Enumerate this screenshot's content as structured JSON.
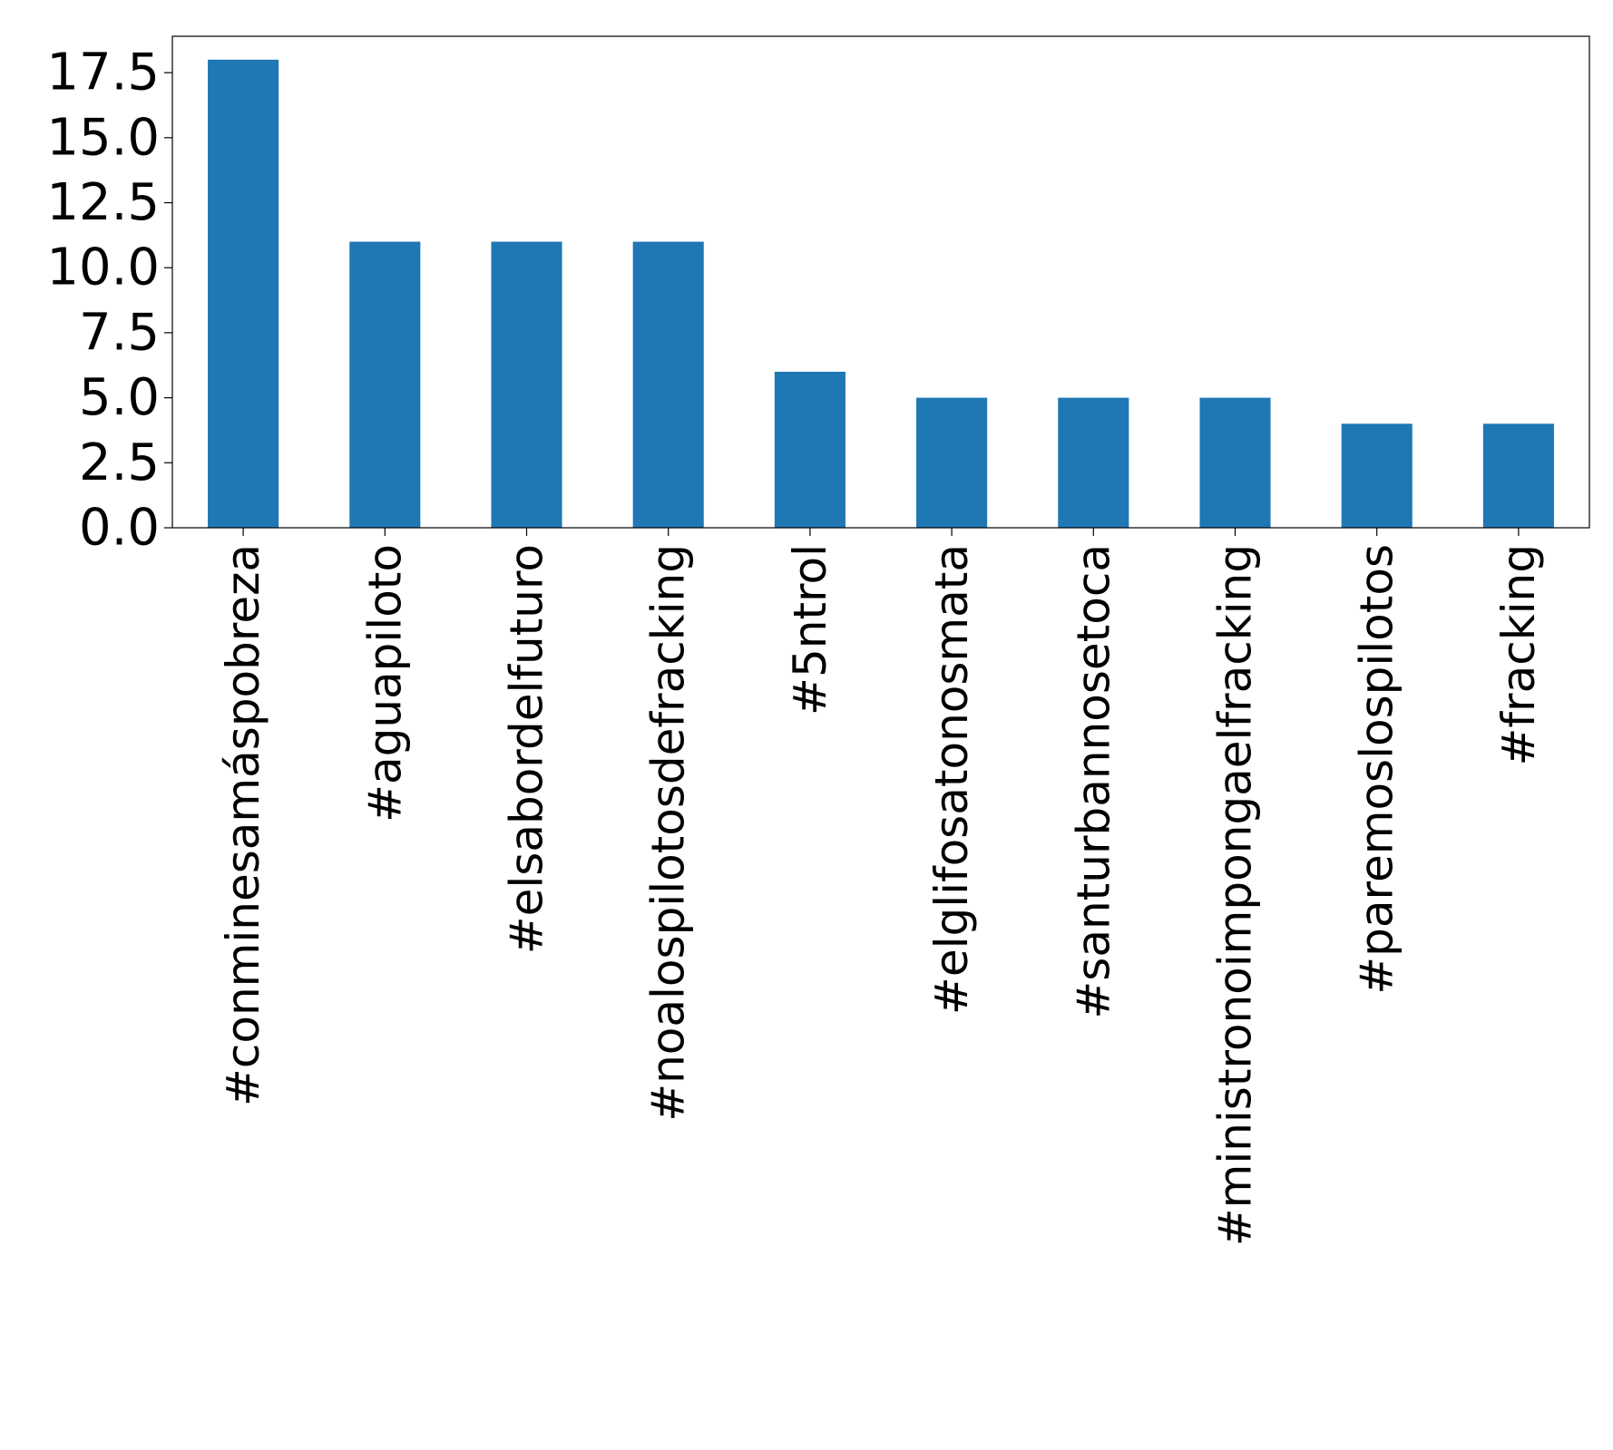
{
  "chart_data": {
    "type": "bar",
    "title": "",
    "xlabel": "",
    "ylabel": "",
    "categories": [
      "#conminesamáspobreza",
      "#aguapiloto",
      "#elsabordelfuturo",
      "#noalospilotosdefracking",
      "#5ntrol",
      "#elglifosatonosmata",
      "#santurbannosetoca",
      "#ministronoimpongaelfracking",
      "#paremoslospilotos",
      "#fracking"
    ],
    "values": [
      18,
      11,
      11,
      11,
      6,
      5,
      5,
      5,
      4,
      4
    ],
    "ylim": [
      0,
      18.9
    ],
    "yticks": [
      0.0,
      2.5,
      5.0,
      7.5,
      10.0,
      12.5,
      15.0,
      17.5
    ],
    "ytick_labels": [
      "0.0",
      "2.5",
      "5.0",
      "7.5",
      "10.0",
      "12.5",
      "15.0",
      "17.5"
    ],
    "bar_color": "#1f77b4",
    "grid": false,
    "legend": "none"
  }
}
